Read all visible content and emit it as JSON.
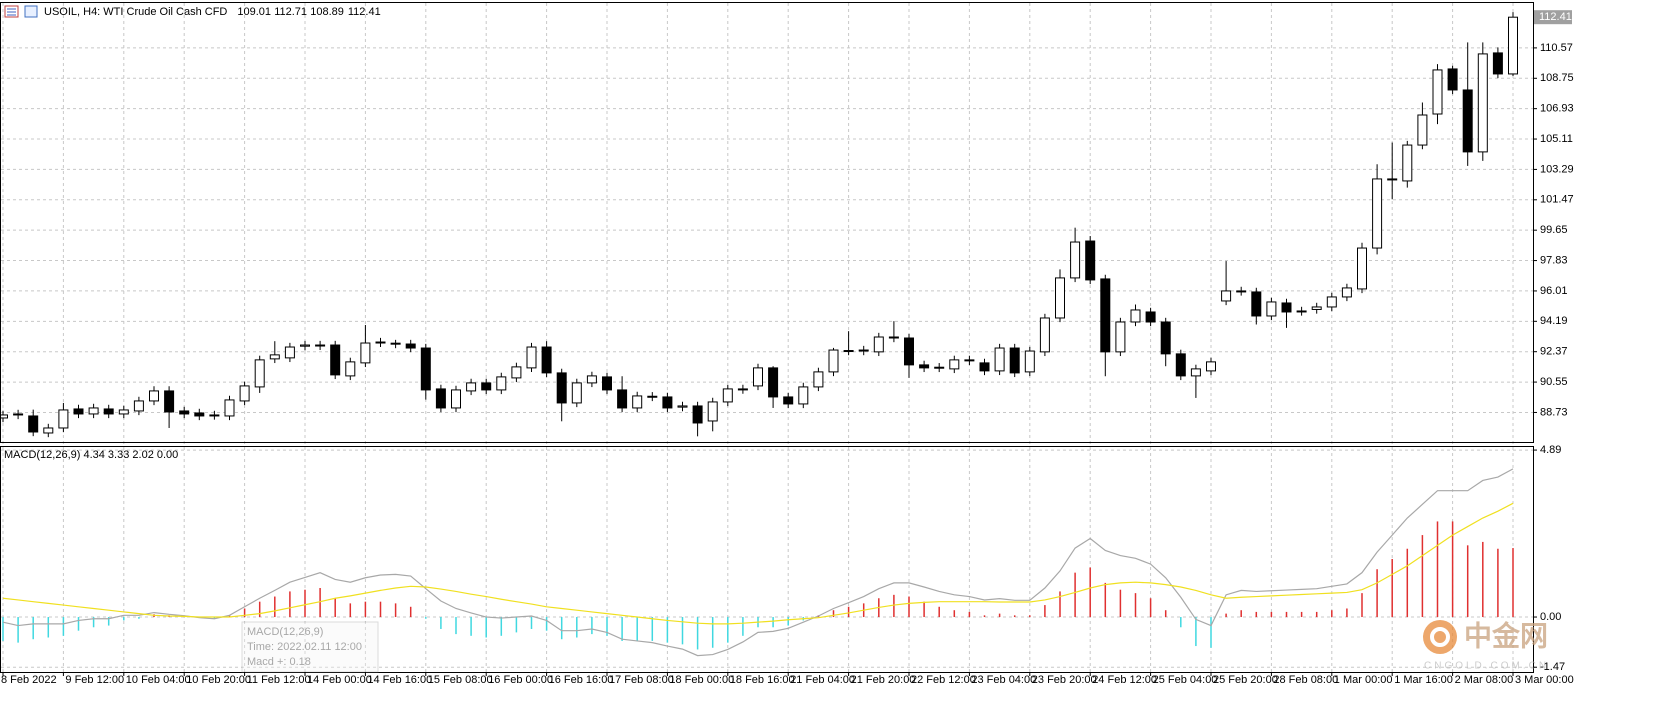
{
  "chart_data": [
    {
      "type": "candlestick",
      "title": "USOIL, H4: WTI Crude Oil Cash CFD",
      "categories": [
        "8 Feb 2022",
        null,
        null,
        null,
        "9 Feb 12:00",
        null,
        null,
        null,
        "10 Feb 04:00",
        null,
        null,
        null,
        "10 Feb 20:00",
        null,
        null,
        null,
        "11 Feb 12:00",
        null,
        null,
        null,
        "14 Feb 00:00",
        null,
        null,
        null,
        "14 Feb 16:00",
        null,
        null,
        null,
        "15 Feb 08:00",
        null,
        null,
        null,
        "16 Feb 00:00",
        null,
        null,
        null,
        "16 Feb 16:00",
        null,
        null,
        null,
        "17 Feb 08:00",
        null,
        null,
        null,
        "18 Feb 00:00",
        null,
        null,
        null,
        "18 Feb 16:00",
        null,
        null,
        null,
        "21 Feb 04:00",
        null,
        null,
        null,
        "21 Feb 20:00",
        null,
        null,
        null,
        "22 Feb 12:00",
        null,
        null,
        null,
        "23 Feb 04:00",
        null,
        null,
        null,
        "23 Feb 20:00",
        null,
        null,
        null,
        "24 Feb 12:00",
        null,
        null,
        null,
        "25 Feb 04:00",
        null,
        null,
        null,
        "25 Feb 20:00",
        null,
        null,
        null,
        "28 Feb 08:00",
        null,
        null,
        null,
        "1 Mar 00:00",
        null,
        null,
        null,
        "1 Mar 16:00",
        null,
        null,
        null,
        "2 Mar 08:00",
        null,
        null,
        null,
        "3 Mar 00:00"
      ],
      "open": [
        88.4,
        88.58,
        88.52,
        87.5,
        87.8,
        88.94,
        88.64,
        88.94,
        88.64,
        88.82,
        89.42,
        90.02,
        88.82,
        88.7,
        88.58,
        88.52,
        89.42,
        90.26,
        91.94,
        92.0,
        92.7,
        92.77,
        92.77,
        90.92,
        91.7,
        92.9,
        92.88,
        92.83,
        92.59,
        90.14,
        89.0,
        90.02,
        90.5,
        90.08,
        90.8,
        91.4,
        92.65,
        91.1,
        89.3,
        90.5,
        90.86,
        90.08,
        89.0,
        89.7,
        89.66,
        89.05,
        89.12,
        88.22,
        89.36,
        90.1,
        90.32,
        91.4,
        89.66,
        89.24,
        90.26,
        91.16,
        92.44,
        92.41,
        92.36,
        93.25,
        93.19,
        91.58,
        91.4,
        91.34,
        91.88,
        91.7,
        91.22,
        92.59,
        91.16,
        92.36,
        94.39,
        96.79,
        99.0,
        96.73,
        92.36,
        94.15,
        94.75,
        94.15,
        92.24,
        90.92,
        91.22,
        95.41,
        96.01,
        95.95,
        94.51,
        95.29,
        94.78,
        94.9,
        95.05,
        95.65,
        96.13,
        98.58,
        102.72,
        102.6,
        104.75,
        106.61,
        109.31,
        108.05,
        104.34,
        110.27,
        109.01
      ],
      "high": [
        88.83,
        88.89,
        88.9,
        88.05,
        89.3,
        89.19,
        89.25,
        89.19,
        89.13,
        89.67,
        90.3,
        90.3,
        89.07,
        88.95,
        88.83,
        89.73,
        90.57,
        92.13,
        93.0,
        92.9,
        93.02,
        93.02,
        93.02,
        92.01,
        93.97,
        93.2,
        93.08,
        93.08,
        92.84,
        90.39,
        90.33,
        90.75,
        90.75,
        91.11,
        91.71,
        92.9,
        93.0,
        91.35,
        90.75,
        91.17,
        91.11,
        90.9,
        89.97,
        89.95,
        89.91,
        89.37,
        89.37,
        89.61,
        90.39,
        90.39,
        91.65,
        91.5,
        89.91,
        90.51,
        91.41,
        92.6,
        93.6,
        92.72,
        93.5,
        94.2,
        93.44,
        91.83,
        91.69,
        92.13,
        92.13,
        91.95,
        92.84,
        92.84,
        92.66,
        94.64,
        97.3,
        99.8,
        99.3,
        96.98,
        94.4,
        95.2,
        95.0,
        94.4,
        92.49,
        91.59,
        92.01,
        97.8,
        96.26,
        96.2,
        95.6,
        95.54,
        95.06,
        95.3,
        95.9,
        96.44,
        98.9,
        103.6,
        104.9,
        105.0,
        107.3,
        109.6,
        109.5,
        110.9,
        110.9,
        110.6,
        112.71
      ],
      "low": [
        88.15,
        88.33,
        87.31,
        87.25,
        87.55,
        88.39,
        88.39,
        88.39,
        88.39,
        88.57,
        89.17,
        87.8,
        88.39,
        88.27,
        88.3,
        88.27,
        89.17,
        89.9,
        91.69,
        91.75,
        92.45,
        92.47,
        90.73,
        90.67,
        91.45,
        92.65,
        92.58,
        92.34,
        89.5,
        88.75,
        88.75,
        89.77,
        89.83,
        89.83,
        90.55,
        91.15,
        90.85,
        88.2,
        89.05,
        90.25,
        89.83,
        88.75,
        88.75,
        89.41,
        88.75,
        88.8,
        87.3,
        87.6,
        89.11,
        89.85,
        90.07,
        89.0,
        88.99,
        88.99,
        90.01,
        90.91,
        92.16,
        92.16,
        92.11,
        92.94,
        90.8,
        91.15,
        91.15,
        91.09,
        91.57,
        90.97,
        90.97,
        90.85,
        90.91,
        92.11,
        94.14,
        96.54,
        96.42,
        90.9,
        92.11,
        93.9,
        93.9,
        91.5,
        90.67,
        89.6,
        90.97,
        95.16,
        95.73,
        94.0,
        94.26,
        93.8,
        94.53,
        94.65,
        94.8,
        95.4,
        95.88,
        98.2,
        101.5,
        102.2,
        104.5,
        106.0,
        107.8,
        103.5,
        103.8,
        108.76,
        108.89
      ],
      "close": [
        88.58,
        88.64,
        87.56,
        87.8,
        88.88,
        88.64,
        89.0,
        88.64,
        88.88,
        89.42,
        90.02,
        88.76,
        88.64,
        88.52,
        88.55,
        89.48,
        90.32,
        91.88,
        92.18,
        92.65,
        92.77,
        92.72,
        90.98,
        91.76,
        92.89,
        92.95,
        92.83,
        92.59,
        90.08,
        89.0,
        90.08,
        90.5,
        90.08,
        90.86,
        91.46,
        92.65,
        91.1,
        89.3,
        90.5,
        90.92,
        90.08,
        89.0,
        89.72,
        89.66,
        89.0,
        89.12,
        88.1,
        89.36,
        90.14,
        90.14,
        91.4,
        89.66,
        89.24,
        90.26,
        91.16,
        92.47,
        92.41,
        92.47,
        93.25,
        93.19,
        91.58,
        91.4,
        91.44,
        91.88,
        91.82,
        91.22,
        92.59,
        91.1,
        92.41,
        94.39,
        96.79,
        98.94,
        96.67,
        92.36,
        94.15,
        94.87,
        94.15,
        92.24,
        90.92,
        91.34,
        91.76,
        96.01,
        95.98,
        94.51,
        95.35,
        94.75,
        94.81,
        95.05,
        95.65,
        96.19,
        98.58,
        102.72,
        102.66,
        104.75,
        106.55,
        109.25,
        108.05,
        104.34,
        110.21,
        109.01,
        112.41
      ],
      "ylim": [
        86.96,
        113.26
      ],
      "yticks": [
        110.57,
        108.75,
        106.93,
        105.11,
        103.29,
        101.47,
        99.65,
        97.83,
        96.01,
        94.19,
        92.37,
        90.55,
        88.73
      ],
      "grid": true,
      "up_color": "#ffffff",
      "down_color": "#000000",
      "edge_color": "#000000"
    },
    {
      "type": "macd",
      "title": "MACD(12,26,9) 4.34 3.33 2.02 0.00",
      "histogram": {
        "up_color": "#e03030",
        "down_color": "#40d8e0",
        "values": [
          -0.7,
          -0.75,
          -0.65,
          -0.6,
          -0.55,
          -0.4,
          -0.3,
          -0.25,
          -0.1,
          -0.05,
          0.08,
          0.05,
          0.02,
          -0.02,
          -0.05,
          0.05,
          0.25,
          0.45,
          0.6,
          0.75,
          0.8,
          0.85,
          0.55,
          0.4,
          0.45,
          0.45,
          0.4,
          0.3,
          -0.05,
          -0.35,
          -0.5,
          -0.55,
          -0.6,
          -0.55,
          -0.45,
          -0.35,
          -0.4,
          -0.65,
          -0.6,
          -0.5,
          -0.55,
          -0.7,
          -0.7,
          -0.7,
          -0.75,
          -0.8,
          -0.95,
          -0.9,
          -0.75,
          -0.55,
          -0.3,
          -0.3,
          -0.25,
          -0.1,
          0.05,
          0.2,
          0.3,
          0.4,
          0.55,
          0.65,
          0.6,
          0.45,
          0.3,
          0.2,
          0.15,
          0.05,
          0.1,
          0.05,
          0.05,
          0.35,
          0.75,
          1.3,
          1.45,
          1.0,
          0.8,
          0.7,
          0.55,
          0.2,
          -0.3,
          -0.85,
          -0.9,
          0.1,
          0.2,
          0.15,
          0.15,
          0.15,
          0.15,
          0.15,
          0.2,
          0.25,
          0.7,
          1.4,
          1.7,
          2.0,
          2.4,
          2.8,
          2.8,
          2.1,
          2.2,
          2.0,
          2.02
        ]
      },
      "lines": [
        {
          "color": "#a8a8a8",
          "values": [
            -0.15,
            -0.25,
            -0.2,
            -0.2,
            -0.2,
            -0.1,
            -0.05,
            -0.05,
            0.05,
            0.05,
            0.13,
            0.08,
            0.04,
            -0.02,
            -0.05,
            0.05,
            0.3,
            0.55,
            0.78,
            1.02,
            1.16,
            1.3,
            1.1,
            1.02,
            1.15,
            1.23,
            1.25,
            1.2,
            0.83,
            0.47,
            0.25,
            0.12,
            0.0,
            -0.03,
            0.0,
            0.03,
            -0.1,
            -0.4,
            -0.4,
            -0.35,
            -0.45,
            -0.65,
            -0.7,
            -0.75,
            -0.85,
            -0.94,
            -1.13,
            -1.1,
            -0.95,
            -0.73,
            -0.45,
            -0.42,
            -0.33,
            -0.15,
            0.03,
            0.25,
            0.42,
            0.6,
            0.83,
            1.0,
            1.0,
            0.88,
            0.75,
            0.65,
            0.6,
            0.5,
            0.54,
            0.49,
            0.49,
            0.85,
            1.35,
            2.02,
            2.3,
            1.95,
            1.8,
            1.72,
            1.55,
            1.15,
            0.58,
            -0.07,
            -0.25,
            0.65,
            0.78,
            0.75,
            0.77,
            0.79,
            0.81,
            0.83,
            0.9,
            0.97,
            1.3,
            1.9,
            2.4,
            2.9,
            3.3,
            3.7,
            3.7,
            3.7,
            4.0,
            4.1,
            4.34
          ]
        },
        {
          "color": "#f0e020",
          "values": [
            0.55,
            0.5,
            0.45,
            0.4,
            0.35,
            0.3,
            0.25,
            0.2,
            0.15,
            0.1,
            0.05,
            0.03,
            0.02,
            0.0,
            0.0,
            0.0,
            0.05,
            0.1,
            0.18,
            0.27,
            0.36,
            0.45,
            0.55,
            0.62,
            0.7,
            0.78,
            0.85,
            0.9,
            0.88,
            0.82,
            0.75,
            0.67,
            0.6,
            0.52,
            0.45,
            0.38,
            0.3,
            0.25,
            0.2,
            0.15,
            0.1,
            0.05,
            0.0,
            -0.05,
            -0.1,
            -0.14,
            -0.18,
            -0.2,
            -0.2,
            -0.18,
            -0.15,
            -0.12,
            -0.08,
            -0.05,
            -0.02,
            0.05,
            0.12,
            0.2,
            0.28,
            0.35,
            0.4,
            0.43,
            0.45,
            0.45,
            0.45,
            0.45,
            0.44,
            0.44,
            0.44,
            0.5,
            0.6,
            0.72,
            0.85,
            0.95,
            1.0,
            1.02,
            1.0,
            0.95,
            0.88,
            0.78,
            0.65,
            0.55,
            0.58,
            0.6,
            0.62,
            0.64,
            0.66,
            0.68,
            0.7,
            0.72,
            0.8,
            1.0,
            1.25,
            1.5,
            1.8,
            2.1,
            2.4,
            2.65,
            2.9,
            3.1,
            3.33
          ]
        }
      ],
      "ylim": [
        -1.61,
        4.98
      ],
      "yticks": [
        4.89,
        {
          "value": 0,
          "label": "0.00"
        },
        -1.47
      ],
      "grid": true
    }
  ],
  "tooltip": [
    "MACD(12,26,9)",
    "Time: 2022.02.11 12:00",
    "Macd +: 0.18"
  ],
  "watermark": {
    "logo": "中金网",
    "site": "CNGOLD.COM.CN"
  }
}
